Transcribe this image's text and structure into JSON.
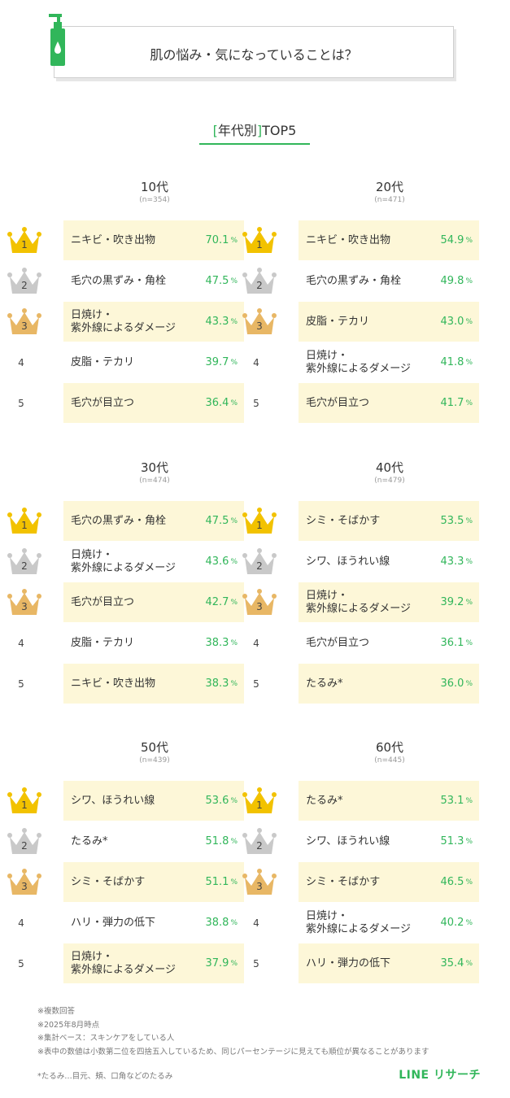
{
  "header": {
    "title": "肌の悩み・気になっていることは？"
  },
  "subtitle": {
    "bracket_open": "[",
    "text": "年代別",
    "bracket_close": "]",
    "suffix": "TOP5"
  },
  "colors": {
    "accent": "#31b65a",
    "highlight": "#fdf7d8",
    "gold": "#f2c200",
    "silver": "#c9c9c9",
    "bronze": "#e8b765"
  },
  "chart_data": [
    {
      "type": "table",
      "title": "10代",
      "n": "(n=354)",
      "items": [
        {
          "rank": "1",
          "label": "ニキビ・吹き出物",
          "value": "70.1",
          "unit": "%"
        },
        {
          "rank": "2",
          "label": "毛穴の黒ずみ・角栓",
          "value": "47.5",
          "unit": "%"
        },
        {
          "rank": "3",
          "label": "日焼け・\n紫外線によるダメージ",
          "value": "43.3",
          "unit": "%"
        },
        {
          "rank": "4",
          "label": "皮脂・テカリ",
          "value": "39.7",
          "unit": "%"
        },
        {
          "rank": "5",
          "label": "毛穴が目立つ",
          "value": "36.4",
          "unit": "%"
        }
      ]
    },
    {
      "type": "table",
      "title": "20代",
      "n": "(n=471)",
      "items": [
        {
          "rank": "1",
          "label": "ニキビ・吹き出物",
          "value": "54.9",
          "unit": "%"
        },
        {
          "rank": "2",
          "label": "毛穴の黒ずみ・角栓",
          "value": "49.8",
          "unit": "%"
        },
        {
          "rank": "3",
          "label": "皮脂・テカリ",
          "value": "43.0",
          "unit": "%"
        },
        {
          "rank": "4",
          "label": "日焼け・\n紫外線によるダメージ",
          "value": "41.8",
          "unit": "%"
        },
        {
          "rank": "5",
          "label": "毛穴が目立つ",
          "value": "41.7",
          "unit": "%"
        }
      ]
    },
    {
      "type": "table",
      "title": "30代",
      "n": "(n=474)",
      "items": [
        {
          "rank": "1",
          "label": "毛穴の黒ずみ・角栓",
          "value": "47.5",
          "unit": "%"
        },
        {
          "rank": "2",
          "label": "日焼け・\n紫外線によるダメージ",
          "value": "43.6",
          "unit": "%"
        },
        {
          "rank": "3",
          "label": "毛穴が目立つ",
          "value": "42.7",
          "unit": "%"
        },
        {
          "rank": "4",
          "label": "皮脂・テカリ",
          "value": "38.3",
          "unit": "%"
        },
        {
          "rank": "5",
          "label": "ニキビ・吹き出物",
          "value": "38.3",
          "unit": "%"
        }
      ]
    },
    {
      "type": "table",
      "title": "40代",
      "n": "(n=479)",
      "items": [
        {
          "rank": "1",
          "label": "シミ・そばかす",
          "value": "53.5",
          "unit": "%"
        },
        {
          "rank": "2",
          "label": "シワ、ほうれい線",
          "value": "43.3",
          "unit": "%"
        },
        {
          "rank": "3",
          "label": "日焼け・\n紫外線によるダメージ",
          "value": "39.2",
          "unit": "%"
        },
        {
          "rank": "4",
          "label": "毛穴が目立つ",
          "value": "36.1",
          "unit": "%"
        },
        {
          "rank": "5",
          "label": "たるみ*",
          "value": "36.0",
          "unit": "%"
        }
      ]
    },
    {
      "type": "table",
      "title": "50代",
      "n": "(n=439)",
      "items": [
        {
          "rank": "1",
          "label": "シワ、ほうれい線",
          "value": "53.6",
          "unit": "%"
        },
        {
          "rank": "2",
          "label": "たるみ*",
          "value": "51.8",
          "unit": "%"
        },
        {
          "rank": "3",
          "label": "シミ・そばかす",
          "value": "51.1",
          "unit": "%"
        },
        {
          "rank": "4",
          "label": "ハリ・弾力の低下",
          "value": "38.8",
          "unit": "%"
        },
        {
          "rank": "5",
          "label": "日焼け・\n紫外線によるダメージ",
          "value": "37.9",
          "unit": "%"
        }
      ]
    },
    {
      "type": "table",
      "title": "60代",
      "n": "(n=445)",
      "items": [
        {
          "rank": "1",
          "label": "たるみ*",
          "value": "53.1",
          "unit": "%"
        },
        {
          "rank": "2",
          "label": "シワ、ほうれい線",
          "value": "51.3",
          "unit": "%"
        },
        {
          "rank": "3",
          "label": "シミ・そばかす",
          "value": "46.5",
          "unit": "%"
        },
        {
          "rank": "4",
          "label": "日焼け・\n紫外線によるダメージ",
          "value": "40.2",
          "unit": "%"
        },
        {
          "rank": "5",
          "label": "ハリ・弾力の低下",
          "value": "35.4",
          "unit": "%"
        }
      ]
    }
  ],
  "notes": [
    "※複数回答",
    "※2025年8月時点",
    "※集計ベース：スキンケアをしている人",
    "※表中の数値は小数第二位を四捨五入しているため、同じパーセンテージに見えても順位が異なることがあります"
  ],
  "footnote": "*たるみ…目元、頬、口角などのたるみ",
  "brand": "LINE リサーチ"
}
